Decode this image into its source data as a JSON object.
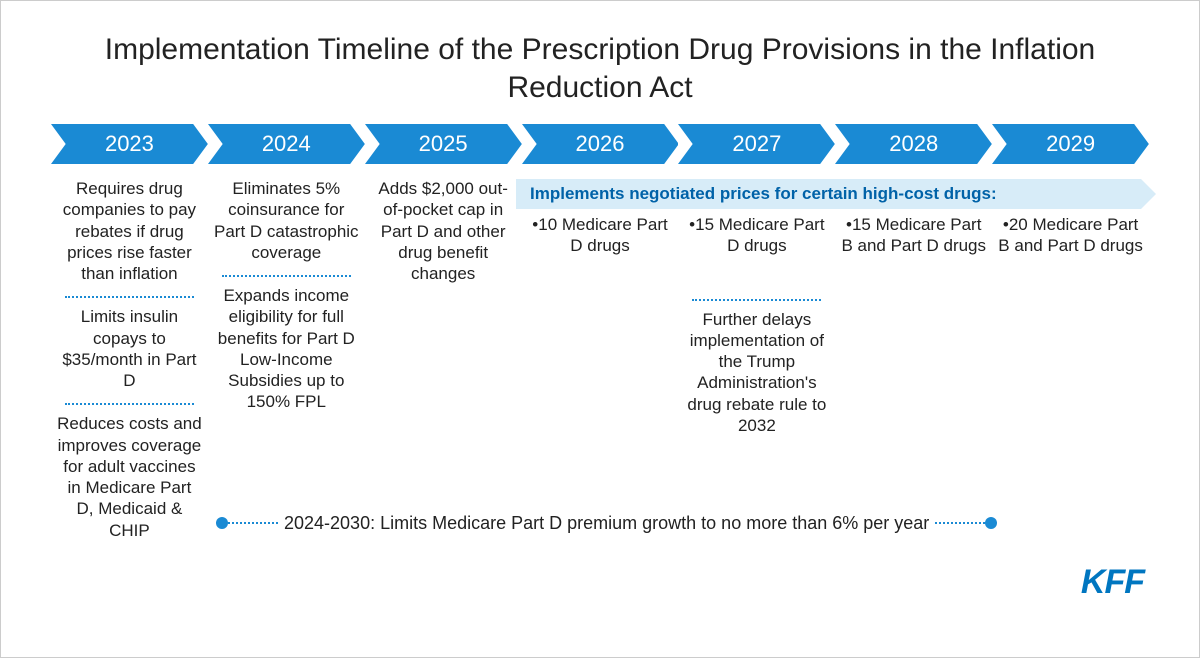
{
  "title": "Implementation Timeline of the Prescription Drug Provisions in the Inflation Reduction Act",
  "arrow_color": "#1a8ad4",
  "banner_color": "#d7ecf8",
  "banner_text_color": "#0062a8",
  "years": [
    "2023",
    "2024",
    "2025",
    "2026",
    "2027",
    "2028",
    "2029"
  ],
  "negotiated_banner": "Implements negotiated prices for certain high-cost drugs:",
  "col_2023": {
    "b1": "Requires drug companies to pay rebates if drug prices rise faster than inflation",
    "b2": "Limits insulin copays to $35/month in Part D",
    "b3": "Reduces costs and improves coverage for adult vaccines in Medicare Part D, Medicaid & CHIP"
  },
  "col_2024": {
    "b1": "Eliminates 5% coinsurance for Part D catastrophic coverage",
    "b2": "Expands income eligibility for full benefits for Part D Low-Income Subsidies up to 150% FPL"
  },
  "col_2025": {
    "b1": "Adds $2,000 out-of-pocket cap in Part D and other drug benefit changes"
  },
  "col_2026": {
    "bullet": "•10 Medicare Part D drugs"
  },
  "col_2027": {
    "bullet": "•15 Medicare Part D drugs",
    "b2": "Further delays implementation of the Trump Administration's drug rebate rule to 2032"
  },
  "col_2028": {
    "bullet": "•15 Medicare Part B and Part D drugs"
  },
  "col_2029": {
    "bullet": "•20 Medicare Part B and Part D drugs"
  },
  "footer": "2024-2030: Limits Medicare Part D premium growth to no more than 6% per year",
  "logo": "KFF"
}
